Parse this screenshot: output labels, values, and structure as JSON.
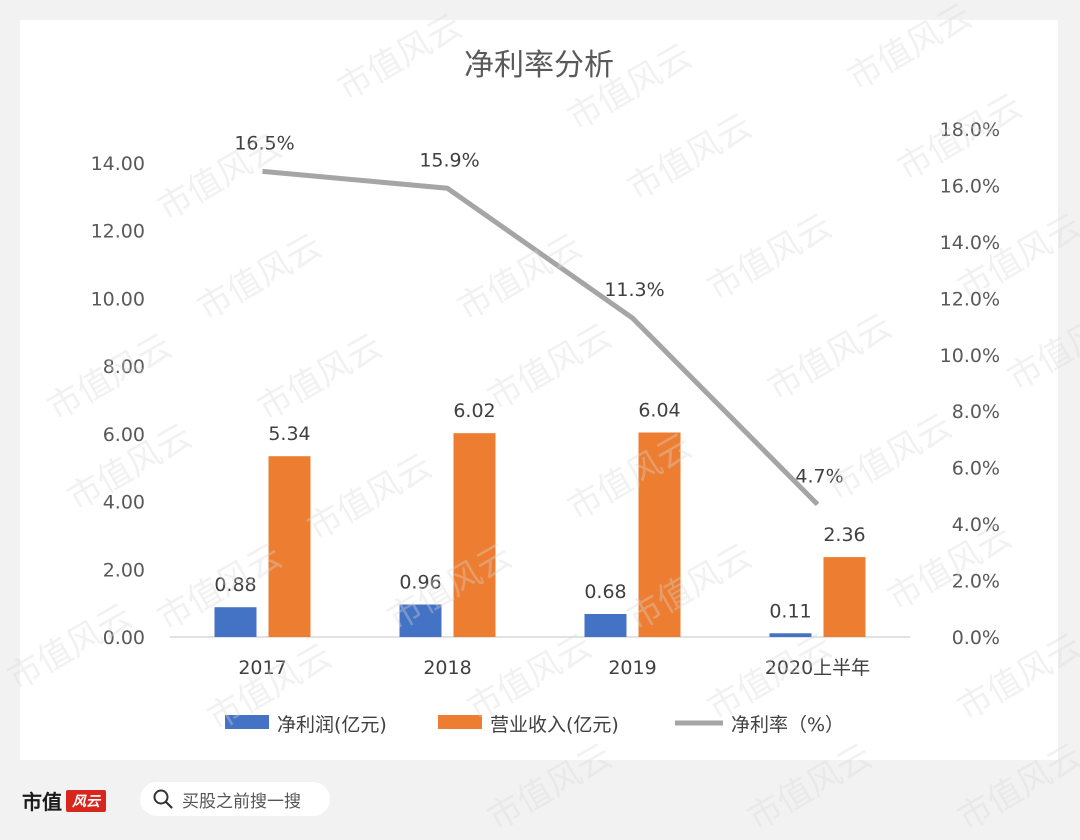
{
  "chart_data": {
    "type": "bar+line",
    "title": "净利率分析",
    "categories": [
      "2017",
      "2018",
      "2019",
      "2020上半年"
    ],
    "series": [
      {
        "name": "净利润(亿元)",
        "type": "bar",
        "axis": "left",
        "color": "#4472c4",
        "values": [
          0.88,
          0.96,
          0.68,
          0.11
        ],
        "labels": [
          "0.88",
          "0.96",
          "0.68",
          "0.11"
        ]
      },
      {
        "name": "营业收入(亿元)",
        "type": "bar",
        "axis": "left",
        "color": "#ed7d31",
        "values": [
          5.34,
          6.02,
          6.04,
          2.36
        ],
        "labels": [
          "5.34",
          "6.02",
          "6.04",
          "2.36"
        ]
      },
      {
        "name": "净利率（%）",
        "type": "line",
        "axis": "right",
        "color": "#a5a5a5",
        "values": [
          16.5,
          15.9,
          11.3,
          4.7
        ],
        "labels": [
          "16.5%",
          "15.9%",
          "11.3%",
          "4.7%"
        ]
      }
    ],
    "y_left": {
      "min": 0,
      "max": 14,
      "ticks": [
        "0.00",
        "2.00",
        "4.00",
        "6.00",
        "8.00",
        "10.00",
        "12.00",
        "14.00"
      ]
    },
    "y_right": {
      "min": 0,
      "max": 18,
      "ticks": [
        "0.0%",
        "2.0%",
        "4.0%",
        "6.0%",
        "8.0%",
        "10.0%",
        "12.0%",
        "14.0%",
        "16.0%",
        "18.0%"
      ]
    },
    "legend": "bottom",
    "grid": false
  },
  "footer": {
    "brand": "市值",
    "brand_mark": "风云",
    "search_text": "买股之前搜一搜"
  },
  "watermark": "市值风云"
}
